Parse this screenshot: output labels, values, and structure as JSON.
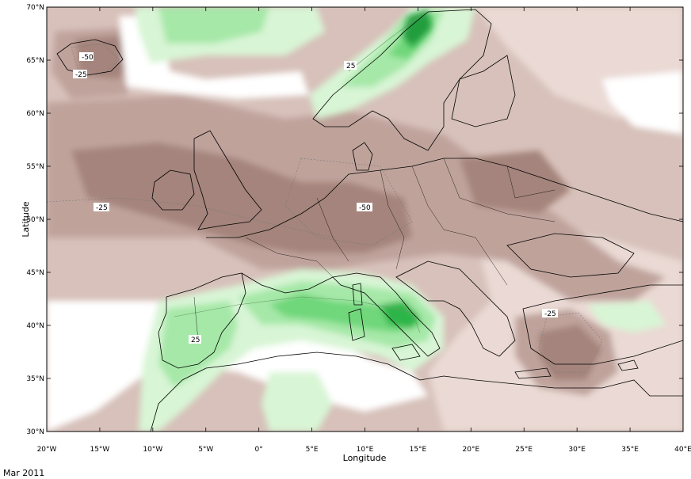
{
  "map": {
    "x_axis_title": "Longitude",
    "y_axis_title": "Latitude",
    "x_ticks": [
      "20°W",
      "15°W",
      "10°W",
      "5°W",
      "0°",
      "5°E",
      "10°E",
      "15°E",
      "20°E",
      "25°E",
      "30°E",
      "35°E",
      "40°E"
    ],
    "y_ticks": [
      "30°N",
      "35°N",
      "40°N",
      "45°N",
      "50°N",
      "55°N",
      "60°N",
      "65°N",
      "70°N"
    ],
    "contour_labels": {
      "iceland_a": "-50",
      "iceland_b": "-25",
      "atlantic": "-25",
      "central": "-50",
      "norway": "25",
      "iberia": "25",
      "aegean": "-25"
    },
    "colors": {
      "strong_brown": "#a4847b",
      "mid_brown": "#bfa39b",
      "light_brown": "#d7c1ba",
      "pale_brown": "#ead9d4",
      "white": "#ffffff",
      "pale_green": "#d8f5d5",
      "light_green": "#a6e8a8",
      "mid_green": "#6fd77a",
      "strong_green": "#2fb54a",
      "dark_green": "#0f8f2e"
    }
  },
  "footer": {
    "date": "Mar 2011"
  }
}
